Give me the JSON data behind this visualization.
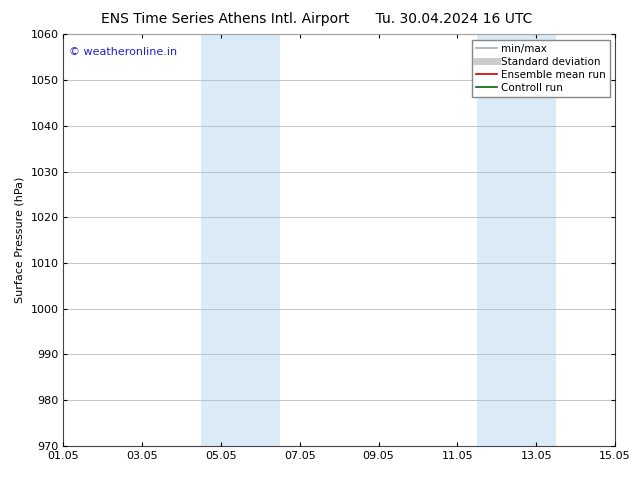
{
  "title_left": "ENS Time Series Athens Intl. Airport",
  "title_right": "Tu. 30.04.2024 16 UTC",
  "ylabel": "Surface Pressure (hPa)",
  "ylim": [
    970,
    1060
  ],
  "yticks": [
    970,
    980,
    990,
    1000,
    1010,
    1020,
    1030,
    1040,
    1050,
    1060
  ],
  "xlim_start": 0,
  "xlim_end": 14,
  "xtick_labels": [
    "01.05",
    "03.05",
    "05.05",
    "07.05",
    "09.05",
    "11.05",
    "13.05",
    "15.05"
  ],
  "xtick_positions": [
    0,
    2,
    4,
    6,
    8,
    10,
    12,
    14
  ],
  "shaded_bands": [
    {
      "x_start": 3.5,
      "x_end": 5.5,
      "color": "#daeaf7"
    },
    {
      "x_start": 10.5,
      "x_end": 12.5,
      "color": "#daeaf7"
    }
  ],
  "watermark_text": "© weatheronline.in",
  "watermark_color": "#2222cc",
  "legend_entries": [
    {
      "label": "min/max",
      "color": "#aaaaaa",
      "lw": 1.2
    },
    {
      "label": "Standard deviation",
      "color": "#cccccc",
      "lw": 5
    },
    {
      "label": "Ensemble mean run",
      "color": "#cc0000",
      "lw": 1.2
    },
    {
      "label": "Controll run",
      "color": "#006600",
      "lw": 1.2
    }
  ],
  "background_color": "#ffffff",
  "grid_color": "#bbbbbb",
  "title_fontsize": 10,
  "tick_fontsize": 8,
  "ylabel_fontsize": 8,
  "legend_fontsize": 7.5,
  "watermark_fontsize": 8
}
